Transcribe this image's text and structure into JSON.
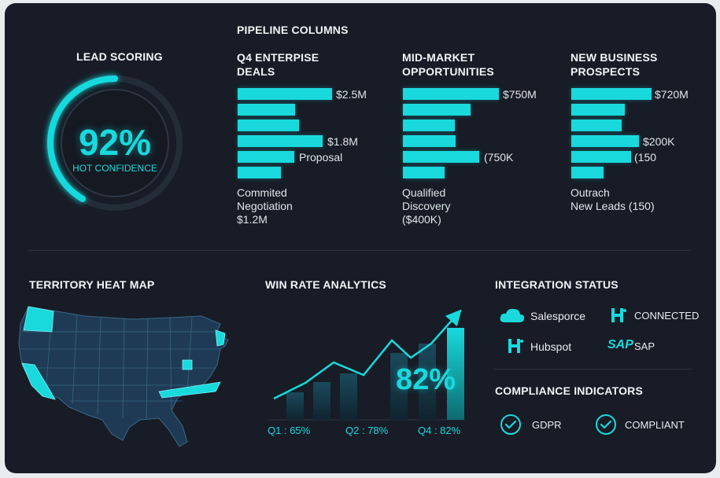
{
  "colors": {
    "accent": "#19d9dd",
    "background": "#171c26",
    "state_dark": "#1f3a55",
    "state_border": "#3a6a86"
  },
  "lead_scoring": {
    "title": "LEAD SCORING",
    "value": "92%",
    "caption": "HOT CONFIDENCE",
    "progress": 0.92
  },
  "pipeline": {
    "title": "PIPELINE COLUMNS",
    "columns": [
      {
        "title_line1": "Q4 ENTERPISE",
        "title_line2": "DEALS",
        "labels": [
          "$2.5M",
          "$1.8M",
          "Proposal"
        ],
        "notes": [
          "Commited",
          "Negotiation",
          "$1.2M"
        ]
      },
      {
        "title_line1": "MID-MARKET",
        "title_line2": "OPPORTUNITIES",
        "labels": [
          "$750M",
          "(750K"
        ],
        "notes": [
          "Qualified",
          "Discovery",
          "($400K)"
        ]
      },
      {
        "title_line1": "NEW BUSINESS",
        "title_line2": "PROSPECTS",
        "labels": [
          "$720M",
          "$200K",
          "(150"
        ],
        "notes": [
          "Outrach",
          "New Leads (150)"
        ]
      }
    ]
  },
  "territory": {
    "title": "TERRITORY HEAT MAP"
  },
  "win_rate": {
    "title": "WIN RATE ANALYTICS",
    "big_value": "82%",
    "quarters": [
      "Q1 : 65%",
      "Q2 : 78%",
      "Q4 : 82%"
    ]
  },
  "integration": {
    "title": "INTEGRATION STATUS",
    "items": [
      {
        "icon": "cloud-icon",
        "label": "Salesporce"
      },
      {
        "icon": "hubspot-icon",
        "label": "CONNECTED"
      },
      {
        "icon": "hubspot-icon",
        "label": "Hubspot"
      },
      {
        "icon": "sap-logo",
        "label": "SAP",
        "logo_text": "SAP"
      }
    ]
  },
  "compliance": {
    "title": "COMPLIANCE INDICATORS",
    "items": [
      "GDPR",
      "COMPLIANT"
    ]
  }
}
